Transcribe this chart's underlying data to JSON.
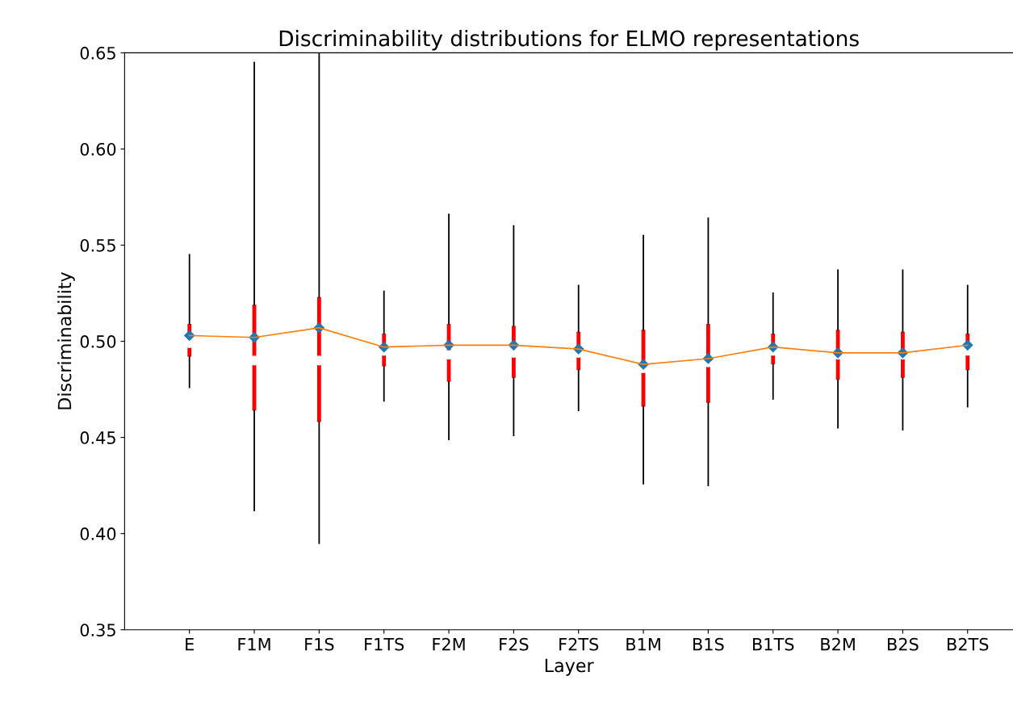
{
  "chart_data": {
    "type": "box",
    "title": "Discriminability distributions for ELMO representations",
    "xlabel": "Layer",
    "ylabel": "Discriminability",
    "categories": [
      "E",
      "F1M",
      "F1S",
      "F1TS",
      "F2M",
      "F2S",
      "F2TS",
      "B1M",
      "B1S",
      "B1TS",
      "B2M",
      "B2S",
      "B2TS"
    ],
    "ylim": [
      0.35,
      0.65
    ],
    "yticks": [
      {
        "value": 0.35,
        "label": "0.35"
      },
      {
        "value": 0.4,
        "label": "0.40"
      },
      {
        "value": 0.45,
        "label": "0.45"
      },
      {
        "value": 0.5,
        "label": "0.50"
      },
      {
        "value": 0.55,
        "label": "0.55"
      },
      {
        "value": 0.6,
        "label": "0.60"
      },
      {
        "value": 0.65,
        "label": "0.65"
      }
    ],
    "grid": false,
    "series": [
      {
        "color": "#ff0000",
        "boxes": [
          {
            "low": 0.476,
            "q1": 0.492,
            "median": 0.499,
            "q3": 0.509,
            "high": 0.545,
            "mean": 0.503
          },
          {
            "low": 0.412,
            "q1": 0.464,
            "median": 0.49,
            "q3": 0.519,
            "high": 0.645,
            "mean": 0.502
          },
          {
            "low": 0.395,
            "q1": 0.458,
            "median": 0.49,
            "q3": 0.523,
            "high": 0.65,
            "mean": 0.507
          },
          {
            "low": 0.469,
            "q1": 0.487,
            "median": 0.495,
            "q3": 0.504,
            "high": 0.526,
            "mean": 0.497
          },
          {
            "low": 0.449,
            "q1": 0.479,
            "median": 0.493,
            "q3": 0.509,
            "high": 0.566,
            "mean": 0.498
          },
          {
            "low": 0.451,
            "q1": 0.481,
            "median": 0.494,
            "q3": 0.508,
            "high": 0.56,
            "mean": 0.498
          },
          {
            "low": 0.464,
            "q1": 0.485,
            "median": 0.494,
            "q3": 0.505,
            "high": 0.529,
            "mean": 0.496
          },
          {
            "low": 0.426,
            "q1": 0.466,
            "median": 0.486,
            "q3": 0.506,
            "high": 0.555,
            "mean": 0.488
          },
          {
            "low": 0.425,
            "q1": 0.468,
            "median": 0.489,
            "q3": 0.509,
            "high": 0.564,
            "mean": 0.491
          },
          {
            "low": 0.47,
            "q1": 0.488,
            "median": 0.495,
            "q3": 0.504,
            "high": 0.525,
            "mean": 0.497
          },
          {
            "low": 0.455,
            "q1": 0.48,
            "median": 0.493,
            "q3": 0.506,
            "high": 0.537,
            "mean": 0.494
          },
          {
            "low": 0.454,
            "q1": 0.481,
            "median": 0.493,
            "q3": 0.505,
            "high": 0.537,
            "mean": 0.494
          },
          {
            "low": 0.466,
            "q1": 0.485,
            "median": 0.495,
            "q3": 0.504,
            "high": 0.529,
            "mean": 0.498
          }
        ]
      },
      {
        "type": "line",
        "color": "#ff7f0e",
        "values": [
          0.503,
          0.502,
          0.507,
          0.497,
          0.498,
          0.498,
          0.496,
          0.488,
          0.491,
          0.497,
          0.494,
          0.494,
          0.498
        ]
      }
    ]
  }
}
